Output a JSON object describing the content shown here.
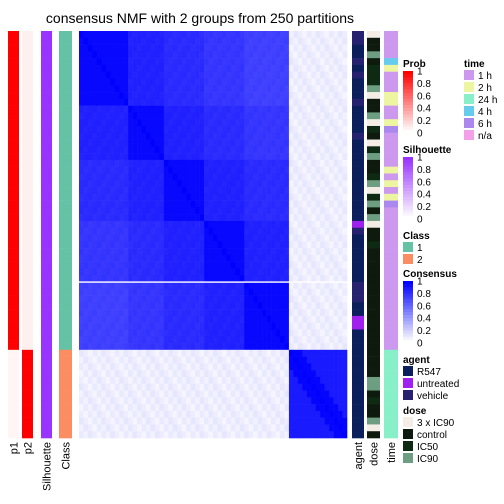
{
  "chart_data": {
    "type": "heatmap",
    "title": "consensus NMF with 2 groups from 250 partitions",
    "n_samples": 60,
    "group_split": 47,
    "row_gap_after": 37,
    "left_tracks": [
      {
        "key": "p1",
        "label": "p1",
        "values": [
          1,
          1,
          1,
          1,
          1,
          1,
          1,
          1,
          1,
          1,
          1,
          1,
          1,
          1,
          1,
          1,
          1,
          1,
          1,
          1,
          1,
          1,
          1,
          1,
          1,
          1,
          1,
          1,
          1,
          1,
          1,
          1,
          1,
          1,
          1,
          1,
          1,
          1,
          1,
          1,
          1,
          1,
          1,
          1,
          1,
          1,
          1,
          0,
          0,
          0,
          0,
          0,
          0,
          0,
          0,
          0,
          0,
          0,
          0,
          0
        ]
      },
      {
        "key": "p2",
        "label": "p2",
        "values": [
          0,
          0,
          0,
          0,
          0,
          0,
          0,
          0,
          0,
          0,
          0,
          0,
          0,
          0,
          0,
          0,
          0,
          0,
          0,
          0,
          0,
          0,
          0,
          0,
          0,
          0,
          0,
          0,
          0,
          0,
          0,
          0,
          0,
          0,
          0,
          0,
          0,
          0,
          0,
          0,
          0,
          0,
          0,
          0,
          0,
          0,
          0,
          1,
          1,
          1,
          1,
          1,
          1,
          1,
          1,
          1,
          1,
          1,
          1,
          1
        ]
      },
      {
        "key": "silhouette",
        "label": "Silhouette",
        "values": [
          1,
          1,
          1,
          1,
          1,
          1,
          1,
          1,
          1,
          1,
          1,
          1,
          1,
          1,
          1,
          1,
          1,
          1,
          1,
          1,
          1,
          1,
          1,
          1,
          1,
          1,
          1,
          1,
          1,
          1,
          1,
          1,
          1,
          1,
          1,
          1,
          1,
          1,
          1,
          1,
          1,
          1,
          1,
          1,
          1,
          1,
          1,
          1,
          1,
          1,
          1,
          1,
          1,
          1,
          1,
          1,
          1,
          1,
          1,
          1
        ]
      },
      {
        "key": "class",
        "label": "Class",
        "values": [
          1,
          1,
          1,
          1,
          1,
          1,
          1,
          1,
          1,
          1,
          1,
          1,
          1,
          1,
          1,
          1,
          1,
          1,
          1,
          1,
          1,
          1,
          1,
          1,
          1,
          1,
          1,
          1,
          1,
          1,
          1,
          1,
          1,
          1,
          1,
          1,
          1,
          1,
          1,
          1,
          1,
          1,
          1,
          1,
          1,
          1,
          1,
          2,
          2,
          2,
          2,
          2,
          2,
          2,
          2,
          2,
          2,
          2,
          2,
          2
        ]
      }
    ],
    "right_tracks": [
      {
        "key": "agent",
        "label": "agent",
        "values": [
          "vehicle",
          "vehicle",
          "R547",
          "R547",
          "vehicle",
          "R547",
          "vehicle",
          "R547",
          "R547",
          "R547",
          "vehicle",
          "R547",
          "R547",
          "R547",
          "R547",
          "vehicle",
          "R547",
          "R547",
          "R547",
          "R547",
          "R547",
          "R547",
          "R547",
          "R547",
          "R547",
          "R547",
          "R547",
          "R547",
          "untreated",
          "vehicle",
          "R547",
          "R547",
          "R547",
          "R547",
          "R547",
          "R547",
          "R547",
          "vehicle",
          "vehicle",
          "vehicle",
          "R547",
          "R547",
          "untreated",
          "untreated",
          "R547",
          "R547",
          "R547",
          "R547",
          "R547",
          "R547",
          "R547",
          "R547",
          "R547",
          "R547",
          "R547",
          "R547",
          "R547",
          "R547",
          "R547",
          "R547"
        ]
      },
      {
        "key": "dose",
        "label": "dose",
        "values": [
          "3 x IC90",
          "control",
          "control",
          "IC90",
          "control",
          "IC50",
          "IC50",
          "IC50",
          "IC90",
          "3 x IC90",
          "control",
          "control",
          "IC90",
          "3 x IC90",
          "IC50",
          "control",
          "3 x IC90",
          "IC50",
          "IC90",
          "control",
          "control",
          "IC50",
          "IC90",
          "3 x IC90",
          "IC50",
          "IC90",
          "control",
          "IC90",
          "3 x IC90",
          "control",
          "control",
          "IC50",
          "control",
          "control",
          "control",
          "control",
          "control",
          "control",
          "control",
          "control",
          "control",
          "control",
          "control",
          "control",
          "control",
          "control",
          "control",
          "control",
          "control",
          "control",
          "control",
          "IC90",
          "IC90",
          "control",
          "IC50",
          "control",
          "control",
          "IC90",
          "3 x IC90",
          "control"
        ]
      },
      {
        "key": "time",
        "label": "time",
        "values": [
          "1 h",
          "1 h",
          "1 h",
          "1 h",
          "4 h",
          "2 h",
          "1 h",
          "1 h",
          "1 h",
          "2 h",
          "2 h",
          "1 h",
          "1 h",
          "2 h",
          "6 h",
          "1 h",
          "1 h",
          "1 h",
          "1 h",
          "1 h",
          "2 h",
          "1 h",
          "2 h",
          "1 h",
          "2 h",
          "6 h",
          "1 h",
          "1 h",
          "1 h",
          "1 h",
          "1 h",
          "1 h",
          "1 h",
          "1 h",
          "1 h",
          "1 h",
          "1 h",
          "1 h",
          "1 h",
          "1 h",
          "1 h",
          "1 h",
          "1 h",
          "1 h",
          "1 h",
          "1 h",
          "1 h",
          "24 h",
          "24 h",
          "24 h",
          "24 h",
          "24 h",
          "24 h",
          "24 h",
          "24 h",
          "24 h",
          "24 h",
          "24 h",
          "24 h",
          "24 h"
        ]
      }
    ],
    "legends": [
      {
        "title": "Prob",
        "kind": "gradient",
        "colors": [
          "#FFFFFF",
          "#FF0000"
        ],
        "ticks": [
          "1",
          "0.8",
          "0.6",
          "0.4",
          "0.2",
          "0"
        ]
      },
      {
        "title": "Silhouette",
        "kind": "gradient",
        "colors": [
          "#FFFFFF",
          "#9933FF"
        ],
        "ticks": [
          "1",
          "0.8",
          "0.6",
          "0.4",
          "0.2",
          "0"
        ]
      },
      {
        "title": "Class",
        "kind": "discrete",
        "items": [
          {
            "label": "1",
            "color": "#66C2A5"
          },
          {
            "label": "2",
            "color": "#FC8D62"
          }
        ]
      },
      {
        "title": "Consensus",
        "kind": "gradient",
        "colors": [
          "#FFFFFF",
          "#0000FF"
        ],
        "ticks": [
          "1",
          "0.8",
          "0.6",
          "0.4",
          "0.2",
          "0"
        ]
      },
      {
        "title": "agent",
        "kind": "discrete",
        "items": [
          {
            "label": "R547",
            "color": "#0B1F5C"
          },
          {
            "label": "untreated",
            "color": "#A020F0"
          },
          {
            "label": "vehicle",
            "color": "#262270"
          }
        ]
      },
      {
        "title": "dose",
        "kind": "discrete",
        "items": [
          {
            "label": "3 x IC90",
            "color": "#F3EDE6"
          },
          {
            "label": "control",
            "color": "#0D1A0D"
          },
          {
            "label": "IC50",
            "color": "#0E2A12"
          },
          {
            "label": "IC90",
            "color": "#6E9E82"
          }
        ]
      },
      {
        "title": "time",
        "kind": "discrete",
        "items": [
          {
            "label": "1 h",
            "color": "#CC99EE"
          },
          {
            "label": "2 h",
            "color": "#EEF5A0"
          },
          {
            "label": "24 h",
            "color": "#88F0C8"
          },
          {
            "label": "4 h",
            "color": "#66CCEE"
          },
          {
            "label": "6 h",
            "color": "#AA88EE"
          },
          {
            "label": "n/a",
            "color": "#F2A0E8"
          }
        ]
      }
    ]
  }
}
